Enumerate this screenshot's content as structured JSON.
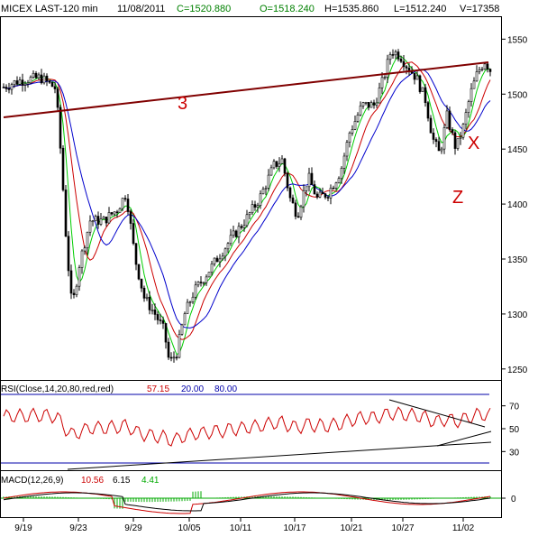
{
  "header": {
    "symbol": "MICEX LAST-120 min",
    "date": "11/08/2011",
    "close": "C=1520.880",
    "open": "O=1518.240",
    "high": "H=1535.860",
    "low": "L=1512.240",
    "volume": "V=17358"
  },
  "chart_data": [
    {
      "type": "candlestick",
      "panel": "price",
      "x_ticks": [
        "9/19",
        "9/23",
        "9/29",
        "10/05",
        "10/11",
        "10/17",
        "10/21",
        "10/27",
        "11/02"
      ],
      "y_ticks": [
        1250,
        1300,
        1350,
        1400,
        1450,
        1500,
        1550
      ],
      "ylim": [
        1240,
        1570
      ],
      "colors": {
        "candles": "#000000",
        "ma_fast": "#00cc00",
        "ma_mid": "#cc0000",
        "ma_slow": "#0000cc",
        "trendline": "#800000",
        "note": "#cc0000"
      },
      "annotations": [
        "3",
        "X",
        "Z"
      ]
    },
    {
      "type": "line",
      "panel": "rsi",
      "title": "RSI(Close,14,20,80,red,red)",
      "last_value": "57.15",
      "lower_level": "20.00",
      "upper_level": "80.00",
      "y_ticks": [
        30,
        50,
        70
      ],
      "colors": {
        "rsi": "#cc0000",
        "levels": "#0000aa"
      }
    },
    {
      "type": "line",
      "panel": "macd",
      "title": "MACD(12,26,9)",
      "macd": "10.56",
      "signal": "6.15",
      "histogram": "4.41",
      "y_ticks": [
        0
      ],
      "colors": {
        "macd": "#cc0000",
        "signal": "#000000",
        "histogram": "#00aa00"
      }
    }
  ]
}
